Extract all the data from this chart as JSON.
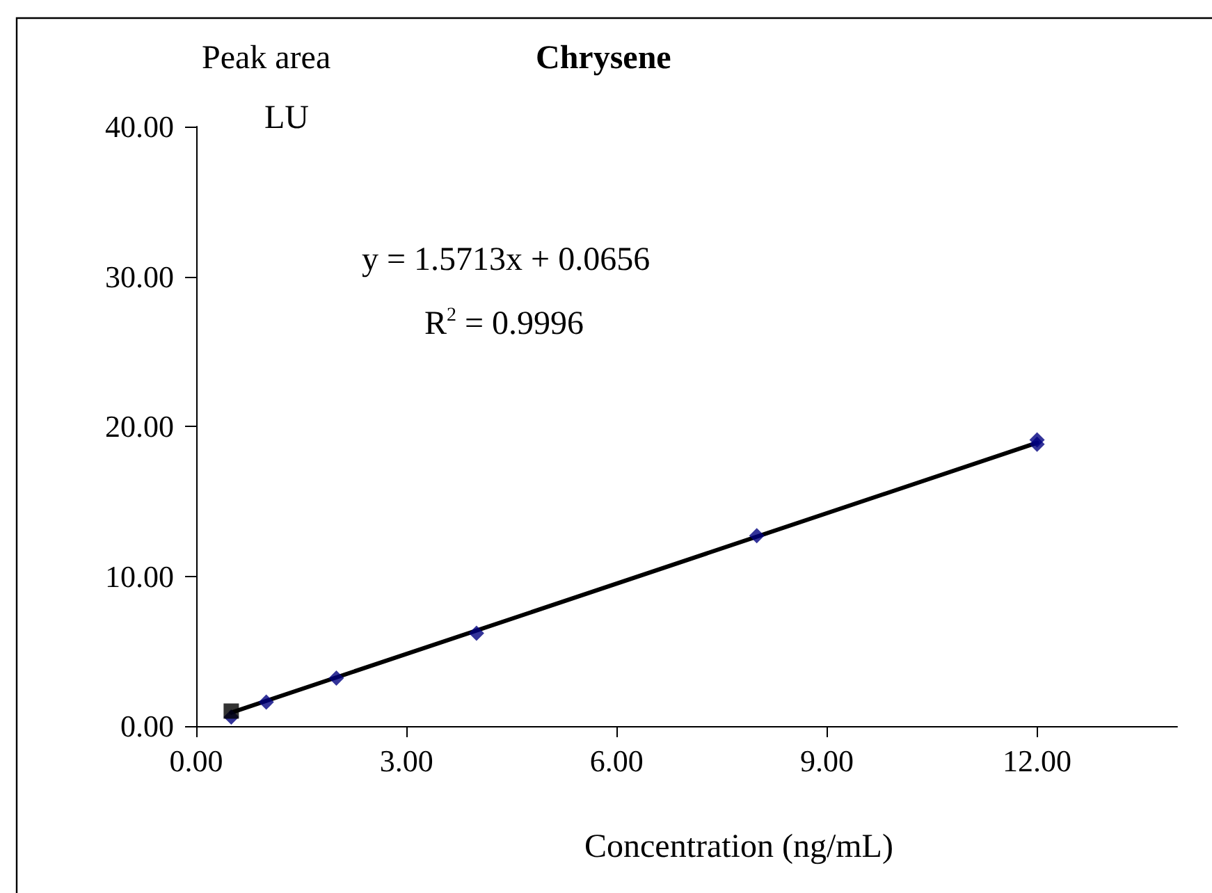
{
  "chart_data": {
    "type": "scatter",
    "title": "Chrysene",
    "xlabel": "Concentration (ng/mL)",
    "ylabel": "Peak area\nLU",
    "annotations": [
      "y = 1.5713x + 0.0656",
      "R$^{2}$ = 0.9996"
    ],
    "xlim": [
      0,
      14
    ],
    "xticks": [
      {
        "value": 0,
        "label": "0.00"
      },
      {
        "value": 3,
        "label": "3.00"
      },
      {
        "value": 6,
        "label": "6.00"
      },
      {
        "value": 9,
        "label": "9.00"
      },
      {
        "value": 12,
        "label": "12.00"
      }
    ],
    "ylim": [
      0,
      40
    ],
    "yticks": [
      {
        "value": 0,
        "label": "0.00"
      },
      {
        "value": 10,
        "label": "10.00"
      },
      {
        "value": 20,
        "label": "20.00"
      },
      {
        "value": 30,
        "label": "30.00"
      },
      {
        "value": 40,
        "label": "40.00"
      }
    ],
    "grid": false,
    "series": [
      {
        "color": "#000080",
        "marker": "diamond",
        "x": [
          0.5,
          1,
          2,
          4,
          8,
          12,
          12
        ],
        "values": [
          0.6,
          1.6,
          3.2,
          6.2,
          12.7,
          18.8,
          19.1
        ]
      },
      {
        "color": "#000000",
        "marker": "square",
        "x": [
          0.5
        ],
        "values": [
          1.0
        ]
      },
      {
        "type": "line",
        "color": "#000000",
        "marker": "none",
        "line_style": "solid",
        "x": [
          0.5,
          12
        ],
        "values": [
          0.9,
          18.9
        ]
      }
    ]
  }
}
